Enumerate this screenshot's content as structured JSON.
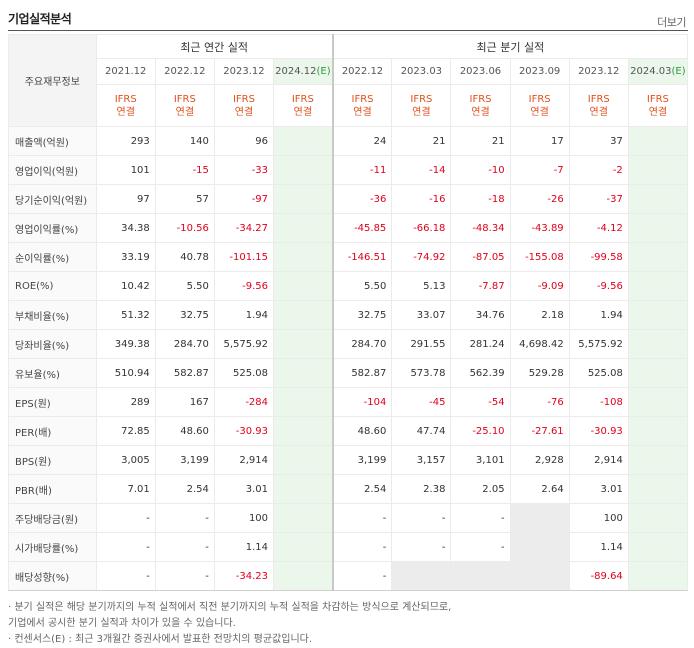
{
  "header": {
    "title": "기업실적분석",
    "more": "더보기"
  },
  "groups": {
    "label": "주요재무정보",
    "annual": "최근 연간 실적",
    "quarterly": "최근 분기 실적"
  },
  "annual_periods": [
    {
      "label": "2021.12",
      "est": ""
    },
    {
      "label": "2022.12",
      "est": ""
    },
    {
      "label": "2023.12",
      "est": ""
    },
    {
      "label": "2024.12",
      "est": "(E)"
    }
  ],
  "quarter_periods": [
    {
      "label": "2022.12",
      "est": ""
    },
    {
      "label": "2023.03",
      "est": ""
    },
    {
      "label": "2023.06",
      "est": ""
    },
    {
      "label": "2023.09",
      "est": ""
    },
    {
      "label": "2023.12",
      "est": ""
    },
    {
      "label": "2024.03",
      "est": "(E)"
    }
  ],
  "ifrs": {
    "line1": "IFRS",
    "line2": "연결"
  },
  "rows": [
    {
      "label": "매출액(억원)",
      "annual": [
        "293",
        "140",
        "96",
        ""
      ],
      "quarter": [
        "24",
        "21",
        "21",
        "17",
        "37",
        ""
      ]
    },
    {
      "label": "영업이익(억원)",
      "annual": [
        "101",
        "-15",
        "-33",
        ""
      ],
      "quarter": [
        "-11",
        "-14",
        "-10",
        "-7",
        "-2",
        ""
      ]
    },
    {
      "label": "당기순이익(억원)",
      "annual": [
        "97",
        "57",
        "-97",
        ""
      ],
      "quarter": [
        "-36",
        "-16",
        "-18",
        "-26",
        "-37",
        ""
      ]
    },
    {
      "label": "영업이익률(%)",
      "annual": [
        "34.38",
        "-10.56",
        "-34.27",
        ""
      ],
      "quarter": [
        "-45.85",
        "-66.18",
        "-48.34",
        "-43.89",
        "-4.12",
        ""
      ]
    },
    {
      "label": "순이익률(%)",
      "annual": [
        "33.19",
        "40.78",
        "-101.15",
        ""
      ],
      "quarter": [
        "-146.51",
        "-74.92",
        "-87.05",
        "-155.08",
        "-99.58",
        ""
      ]
    },
    {
      "label": "ROE(%)",
      "annual": [
        "10.42",
        "5.50",
        "-9.56",
        ""
      ],
      "quarter": [
        "5.50",
        "5.13",
        "-7.87",
        "-9.09",
        "-9.56",
        ""
      ]
    },
    {
      "label": "부채비율(%)",
      "annual": [
        "51.32",
        "32.75",
        "1.94",
        ""
      ],
      "quarter": [
        "32.75",
        "33.07",
        "34.76",
        "2.18",
        "1.94",
        ""
      ]
    },
    {
      "label": "당좌비율(%)",
      "annual": [
        "349.38",
        "284.70",
        "5,575.92",
        ""
      ],
      "quarter": [
        "284.70",
        "291.55",
        "281.24",
        "4,698.42",
        "5,575.92",
        ""
      ]
    },
    {
      "label": "유보율(%)",
      "annual": [
        "510.94",
        "582.87",
        "525.08",
        ""
      ],
      "quarter": [
        "582.87",
        "573.78",
        "562.39",
        "529.28",
        "525.08",
        ""
      ]
    },
    {
      "label": "EPS(원)",
      "annual": [
        "289",
        "167",
        "-284",
        ""
      ],
      "quarter": [
        "-104",
        "-45",
        "-54",
        "-76",
        "-108",
        ""
      ]
    },
    {
      "label": "PER(배)",
      "annual": [
        "72.85",
        "48.60",
        "-30.93",
        ""
      ],
      "quarter": [
        "48.60",
        "47.74",
        "-25.10",
        "-27.61",
        "-30.93",
        ""
      ]
    },
    {
      "label": "BPS(원)",
      "annual": [
        "3,005",
        "3,199",
        "2,914",
        ""
      ],
      "quarter": [
        "3,199",
        "3,157",
        "3,101",
        "2,928",
        "2,914",
        ""
      ]
    },
    {
      "label": "PBR(배)",
      "annual": [
        "7.01",
        "2.54",
        "3.01",
        ""
      ],
      "quarter": [
        "2.54",
        "2.38",
        "2.05",
        "2.64",
        "3.01",
        ""
      ]
    },
    {
      "label": "주당배당금(원)",
      "annual": [
        "-",
        "-",
        "100",
        ""
      ],
      "quarter": [
        "-",
        "-",
        "-",
        "",
        "100",
        ""
      ]
    },
    {
      "label": "시가배당률(%)",
      "annual": [
        "-",
        "-",
        "1.14",
        ""
      ],
      "quarter": [
        "-",
        "-",
        "-",
        "",
        "1.14",
        ""
      ]
    },
    {
      "label": "배당성향(%)",
      "annual": [
        "-",
        "-",
        "-34.23",
        ""
      ],
      "quarter": [
        "-",
        "",
        "",
        "",
        "-89.64",
        ""
      ]
    }
  ],
  "grey_cells": [
    [
      13,
      3
    ],
    [
      14,
      3
    ],
    [
      15,
      1
    ],
    [
      15,
      2
    ],
    [
      15,
      3
    ]
  ],
  "notes": [
    "· 분기 실적은 해당 분기까지의 누적 실적에서 직전 분기까지의 누적 실적을 차감하는 방식으로 계산되므로,",
    "   기업에서 공시한 분기 실적과 차이가 있을 수 있습니다.",
    "· 컨센서스(E) : 최근 3개월간 증권사에서 발표한 전망치의 평균값입니다."
  ],
  "colors": {
    "negative": "#e0001b",
    "ifrs": "#e0501c",
    "estimate_bg": "#eaf7ea",
    "estimate_text": "#2e9a42"
  }
}
